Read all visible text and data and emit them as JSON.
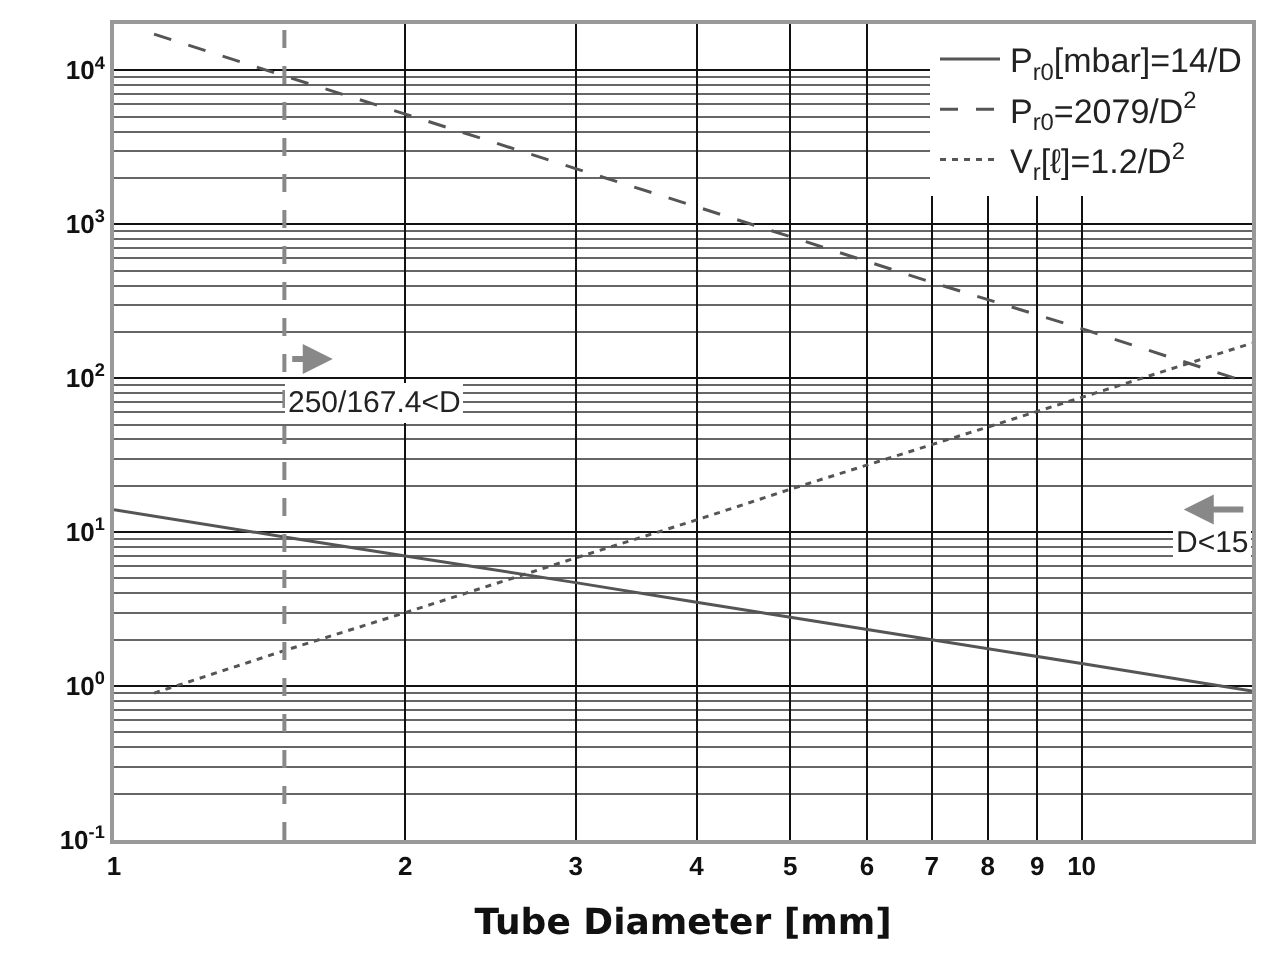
{
  "chart_data": {
    "type": "line",
    "xlabel": "Tube Diameter [mm]",
    "series": [
      {
        "name": "P$_{r0}$[mbar]=14/D",
        "color": "#555555",
        "line_style": "solid",
        "x": [
          1,
          1.5,
          2,
          3,
          4,
          5,
          7,
          10,
          15
        ],
        "values": [
          14,
          9.3,
          7,
          4.7,
          3.5,
          2.8,
          2,
          1.4,
          0.93
        ]
      },
      {
        "name": "P$_{r0}$=2079/D$^{2}$",
        "color": "#555555",
        "line_style": "dashed",
        "x": [
          1.1,
          1.5,
          2,
          3,
          4,
          5,
          7,
          10,
          15
        ],
        "values": [
          17200,
          9200,
          5200,
          2300,
          1300,
          830,
          420,
          210,
          92
        ]
      },
      {
        "name": "V$_{r}$[ℓ]=1.2/D$^{2}$",
        "color": "#555555",
        "line_style": "dotted",
        "x": [
          1.1,
          1.5,
          2,
          3,
          4,
          5,
          7,
          10,
          15
        ],
        "values": [
          0.9,
          1.7,
          3.0,
          6.8,
          12,
          19,
          37,
          75,
          169
        ]
      }
    ],
    "ref_lines": [
      {
        "axis": "x",
        "value": 1.5,
        "color": "#888888",
        "line_style": "dashed"
      }
    ],
    "annotations": [
      {
        "text": "250/167.4<D",
        "x": 1.5,
        "y": 70
      },
      "D<15"
    ],
    "log": "xy",
    "xlim": [
      1,
      15
    ],
    "ylim": [
      0.1,
      20000
    ],
    "xticks": [
      1,
      2,
      3,
      4,
      5,
      6,
      7,
      8,
      9,
      10
    ],
    "yticks": [
      {
        "value": 0.1,
        "label": "10$^{-1}$"
      },
      {
        "value": 1,
        "label": "10$^{0}$"
      },
      {
        "value": 10,
        "label": "10$^{1}$"
      },
      {
        "value": 100,
        "label": "10$^{2}$"
      },
      {
        "value": 1000,
        "label": "10$^{3}$"
      },
      {
        "value": 10000,
        "label": "10$^{4}$"
      }
    ],
    "grid": true,
    "legend": "top right",
    "marker": "none"
  }
}
